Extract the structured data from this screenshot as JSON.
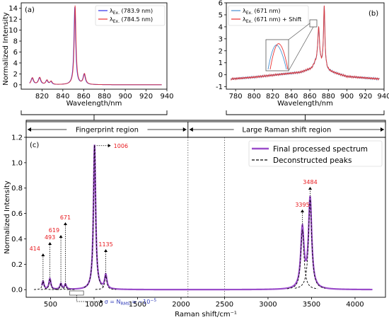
{
  "chart_data": [
    {
      "panel_label": "(a)",
      "type": "line",
      "xlabel": "Wavelength/nm",
      "ylabel": "Normalized Intensity",
      "xlim": [
        800,
        940
      ],
      "ylim": [
        -0.8,
        15
      ],
      "xticks": [
        820,
        840,
        860,
        880,
        900,
        920,
        940
      ],
      "yticks": [
        0,
        2,
        4,
        6,
        8,
        10,
        12,
        14
      ],
      "legend_position": "top-right",
      "series": [
        {
          "name": "λEx. (783.9 nm)",
          "legend_sym": "λ",
          "legend_sub": "Ex.",
          "legend_txt": "(783.9 nm)",
          "color": "#3030e8",
          "peaks": [
            [
              810.5,
              1.2,
              1.4
            ],
            [
              817.5,
              1.25,
              1.4
            ],
            [
              824.5,
              0.75,
              1.2
            ],
            [
              828.5,
              0.55,
              1.2
            ],
            [
              851.5,
              14.2,
              1.0
            ],
            [
              860.5,
              1.85,
              1.3
            ]
          ]
        },
        {
          "name": "λEx. (784.5 nm)",
          "legend_sym": "λ",
          "legend_sub": "Ex.",
          "legend_txt": "(784.5 nm)",
          "color": "#e83030",
          "peaks": [
            [
              810.8,
              1.25,
              1.4
            ],
            [
              817.8,
              1.3,
              1.4
            ],
            [
              824.8,
              0.8,
              1.2
            ],
            [
              828.8,
              0.6,
              1.2
            ],
            [
              851.8,
              14.5,
              1.0
            ],
            [
              860.8,
              1.9,
              1.3
            ]
          ]
        }
      ],
      "x_range": [
        808,
        935
      ]
    },
    {
      "panel_label": "(b)",
      "type": "line",
      "xlabel": "Wavelength/nm",
      "ylabel": "",
      "xlim": [
        770,
        940
      ],
      "ylim": [
        -1.2,
        6
      ],
      "xticks": [
        780,
        800,
        820,
        840,
        860,
        880,
        900,
        920,
        940
      ],
      "yticks": [
        -1,
        0,
        1,
        2,
        3,
        4,
        5,
        6
      ],
      "legend_position": "top-left",
      "series": [
        {
          "name": "λEx. (671 nm)",
          "legend_sym": "λ",
          "legend_sub": "Ex.",
          "legend_txt": "(671 nm)",
          "color": "#4a90d0"
        },
        {
          "name": "λEx. (671 nm) + Shift",
          "legend_sym": "λ",
          "legend_sub": "Ex.",
          "legend_txt": "(671 nm) + Shift",
          "color": "#e83030"
        }
      ],
      "baseline": [
        [
          775,
          -0.35
        ],
        [
          800,
          -0.2
        ],
        [
          830,
          0.05
        ],
        [
          850,
          0.2
        ],
        [
          862,
          0.5
        ],
        [
          866,
          0.9
        ],
        [
          880,
          0.3
        ],
        [
          900,
          -0.15
        ],
        [
          935,
          -0.35
        ]
      ],
      "peaks": [
        [
          869.5,
          3.1,
          1.2
        ],
        [
          875.5,
          5.1,
          0.9
        ]
      ],
      "x_range": [
        775,
        935
      ]
    },
    {
      "panel_label": "(c)",
      "type": "line",
      "xlabel": "Raman shift/cm⁻¹",
      "ylabel": "Normalized Intensity",
      "xlim": [
        220,
        4350
      ],
      "ylim": [
        -0.06,
        1.2
      ],
      "xticks": [
        500,
        1000,
        1500,
        2000,
        2500,
        3000,
        3500,
        4000
      ],
      "yticks": [
        0.0,
        0.2,
        0.4,
        0.6,
        0.8,
        1.0,
        1.2
      ],
      "legend_position": "top-right",
      "series": [
        {
          "name": "Final processed spectrum",
          "color": "#9b4dca"
        },
        {
          "name": "Deconstructed peaks",
          "color": "#000000"
        }
      ],
      "peaks": [
        [
          414,
          0.065,
          13
        ],
        [
          493,
          0.085,
          13
        ],
        [
          619,
          0.045,
          13
        ],
        [
          671,
          0.04,
          13
        ],
        [
          1006,
          1.14,
          15
        ],
        [
          1135,
          0.11,
          15
        ],
        [
          3395,
          0.47,
          22
        ],
        [
          3484,
          0.71,
          22
        ]
      ],
      "x_range": [
        400,
        4200
      ],
      "annotations": [
        {
          "label": "414",
          "x": 414
        },
        {
          "label": "493",
          "x": 493
        },
        {
          "label": "619",
          "x": 619
        },
        {
          "label": "671",
          "x": 671
        },
        {
          "label": "1006",
          "x": 1006
        },
        {
          "label": "1135",
          "x": 1135
        },
        {
          "label": "3395",
          "x": 3395
        },
        {
          "label": "3484",
          "x": 3484
        }
      ],
      "noise_note": "σ = N",
      "noise_sub": "RMS",
      "noise_val": " = ~10",
      "noise_exp": "−5",
      "regions": [
        {
          "label": "Fingerprint region",
          "x0": 220,
          "x1": 2080
        },
        {
          "label": "Large Raman shift region",
          "x0": 2080,
          "x1": 4350
        }
      ],
      "region_boundaries": [
        2080,
        2500
      ]
    }
  ]
}
